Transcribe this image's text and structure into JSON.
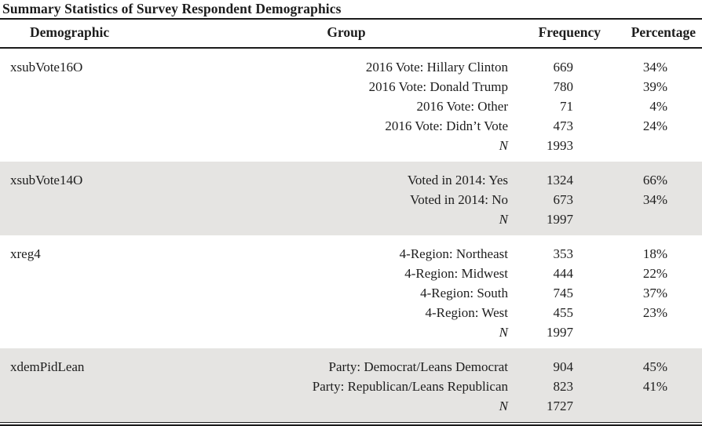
{
  "title": "Summary Statistics of Survey Respondent Demographics",
  "table": {
    "columns": [
      "Demographic",
      "Group",
      "Frequency",
      "Percentage"
    ],
    "n_label": "N",
    "blocks": [
      {
        "demographic": "xsubVote16O",
        "shaded": false,
        "rows": [
          {
            "group": "2016 Vote: Hillary Clinton",
            "frequency": "669",
            "percentage": "34%"
          },
          {
            "group": "2016 Vote: Donald Trump",
            "frequency": "780",
            "percentage": "39%"
          },
          {
            "group": "2016 Vote: Other",
            "frequency": "71",
            "percentage": "4%"
          },
          {
            "group": "2016 Vote: Didn’t Vote",
            "frequency": "473",
            "percentage": "24%"
          }
        ],
        "n_value": "1993"
      },
      {
        "demographic": "xsubVote14O",
        "shaded": true,
        "rows": [
          {
            "group": "Voted in 2014: Yes",
            "frequency": "1324",
            "percentage": "66%"
          },
          {
            "group": "Voted in 2014: No",
            "frequency": "673",
            "percentage": "34%"
          }
        ],
        "n_value": "1997"
      },
      {
        "demographic": "xreg4",
        "shaded": false,
        "rows": [
          {
            "group": "4-Region: Northeast",
            "frequency": "353",
            "percentage": "18%"
          },
          {
            "group": "4-Region: Midwest",
            "frequency": "444",
            "percentage": "22%"
          },
          {
            "group": "4-Region: South",
            "frequency": "745",
            "percentage": "37%"
          },
          {
            "group": "4-Region: West",
            "frequency": "455",
            "percentage": "23%"
          }
        ],
        "n_value": "1997"
      },
      {
        "demographic": "xdemPidLean",
        "shaded": true,
        "rows": [
          {
            "group": "Party: Democrat/Leans Democrat",
            "frequency": "904",
            "percentage": "45%"
          },
          {
            "group": "Party: Republican/Leans Republican",
            "frequency": "823",
            "percentage": "41%"
          }
        ],
        "n_value": "1727"
      }
    ]
  },
  "colors": {
    "band": "#e5e4e2",
    "rule": "#1b1b1b",
    "text": "#1d1d1d"
  }
}
